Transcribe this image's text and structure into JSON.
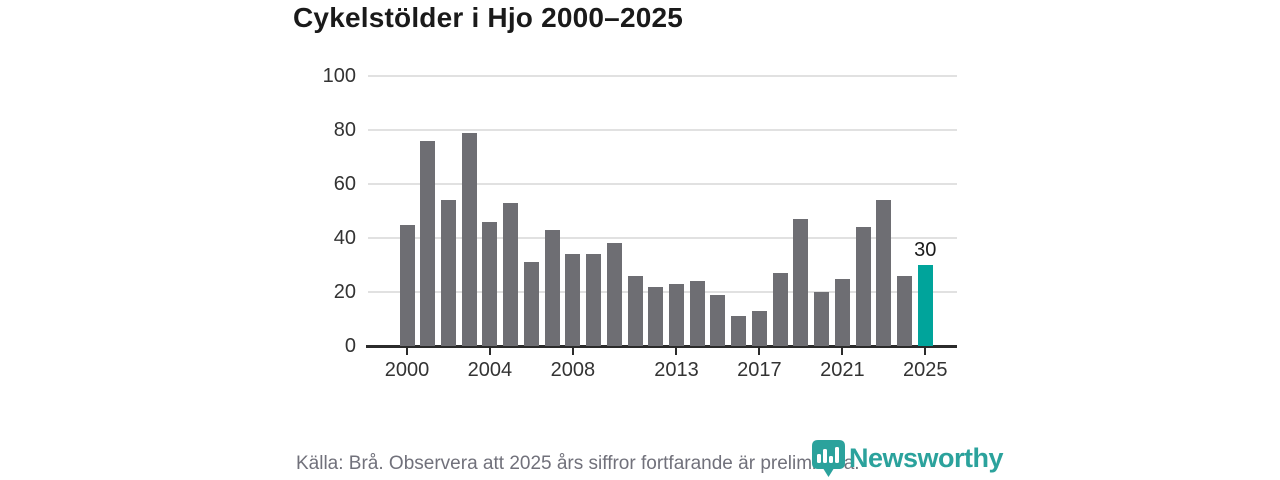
{
  "title": "Cykelstölder i Hjo 2000–2025",
  "chart_data": {
    "type": "bar",
    "title": "Cykelstölder i Hjo 2000–2025",
    "xlabel": "",
    "ylabel": "",
    "ylim": [
      0,
      100
    ],
    "grid": "horizontal",
    "years": [
      2000,
      2001,
      2002,
      2003,
      2004,
      2005,
      2006,
      2007,
      2008,
      2009,
      2010,
      2011,
      2012,
      2013,
      2014,
      2015,
      2016,
      2017,
      2018,
      2019,
      2020,
      2021,
      2022,
      2023,
      2024,
      2025
    ],
    "values": [
      45,
      76,
      54,
      79,
      46,
      53,
      31,
      43,
      34,
      34,
      38,
      26,
      22,
      23,
      24,
      19,
      11,
      13,
      27,
      47,
      20,
      25,
      44,
      54,
      26,
      30
    ],
    "y_ticks": [
      0,
      20,
      40,
      60,
      80,
      100
    ],
    "x_tick_years": [
      2000,
      2004,
      2008,
      2013,
      2017,
      2021,
      2025
    ],
    "highlight_year": 2025,
    "highlight_value_label": "30",
    "bar_color": "#6e6e73",
    "highlight_color": "#00a49b"
  },
  "footer": {
    "source_note": "Källa: Brå. Observera att 2025 års siffror fortfarande är preliminära.",
    "brand": "Newsworthy",
    "brand_color": "#2ba29c"
  }
}
